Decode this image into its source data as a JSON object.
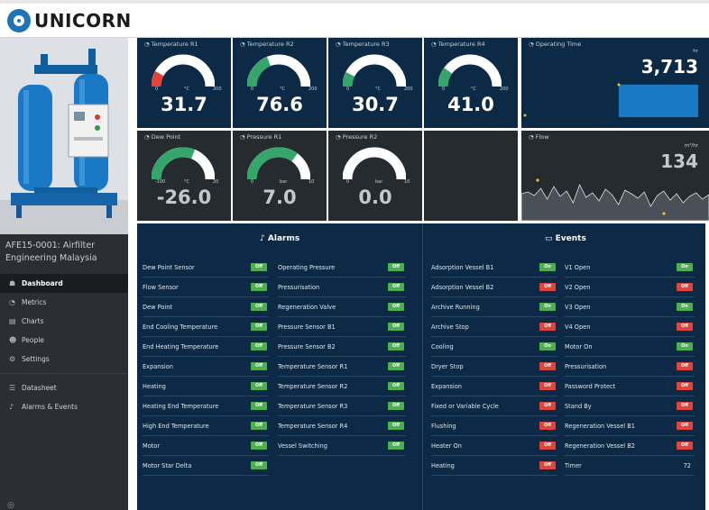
{
  "app": {
    "brand": "UNICORN"
  },
  "sidebar": {
    "machine_caption": "AFE15-0001: Airfilter Engineering Malaysia",
    "nav": [
      {
        "label": "Dashboard",
        "icon": "dashboard-icon",
        "active": true
      },
      {
        "label": "Metrics",
        "icon": "gauge-icon",
        "active": false
      },
      {
        "label": "Charts",
        "icon": "chart-icon",
        "active": false
      },
      {
        "label": "People",
        "icon": "people-icon",
        "active": false
      },
      {
        "label": "Settings",
        "icon": "settings-icon",
        "active": false
      }
    ],
    "nav2": [
      {
        "label": "Datasheet",
        "icon": "datasheet-icon"
      },
      {
        "label": "Alarms & Events",
        "icon": "bell-icon"
      }
    ]
  },
  "top_tiles": [
    {
      "title": "Temperature R1",
      "min": "0",
      "unit": "°C",
      "max": "200",
      "value": "31.7",
      "fill": 0.16,
      "color": "#e0443c",
      "bg": "blue"
    },
    {
      "title": "Temperature R2",
      "min": "0",
      "unit": "°C",
      "max": "200",
      "value": "76.6",
      "fill": 0.38,
      "color": "#36a56b",
      "bg": "blue"
    },
    {
      "title": "Temperature R3",
      "min": "0",
      "unit": "°C",
      "max": "200",
      "value": "30.7",
      "fill": 0.15,
      "color": "#36a56b",
      "bg": "blue"
    },
    {
      "title": "Temperature R4",
      "min": "0",
      "unit": "°C",
      "max": "200",
      "value": "41.0",
      "fill": 0.2,
      "color": "#36a56b",
      "bg": "blue"
    }
  ],
  "operating_time": {
    "title": "Operating Time",
    "unit": "hr",
    "value": "3,713"
  },
  "mid_tiles": [
    {
      "title": "Dew Point",
      "min": "-100",
      "unit": "°C",
      "max": "20",
      "value": "-26.0",
      "fill": 0.62,
      "color": "#36a56b"
    },
    {
      "title": "Pressure R1",
      "min": "0",
      "unit": "bar",
      "max": "10",
      "value": "7.0",
      "fill": 0.7,
      "color": "#36a56b"
    },
    {
      "title": "Pressure R2",
      "min": "0",
      "unit": "bar",
      "max": "10",
      "value": "0.0",
      "fill": 0.0,
      "color": "#36a56b"
    }
  ],
  "flow": {
    "title": "Flow",
    "unit": "m³/hr",
    "value": "134"
  },
  "alarms": {
    "title": "Alarms",
    "left": [
      "Dew Point Sensor",
      "Flow Sensor",
      "Dew Point",
      "End Cooling Temperature",
      "End Heating Temperature",
      "Expansion",
      "Heating",
      "Heating End Temperature",
      "High End Temperature",
      "Motor",
      "Motor Star Delta"
    ],
    "right": [
      "Operating Pressure",
      "Pressurisation",
      "Regeneration Valve",
      "Pressure Sensor B1",
      "Pressure Sensor B2",
      "Temperature Sensor R1",
      "Temperature Sensor R2",
      "Temperature Sensor R3",
      "Temperature Sensor R4",
      "Vessel Switching"
    ],
    "badge": "Off"
  },
  "events": {
    "title": "Events",
    "left": [
      {
        "label": "Adsorption Vessel B1",
        "state": "On"
      },
      {
        "label": "Adsorption Vessel B2",
        "state": "Off"
      },
      {
        "label": "Archive Running",
        "state": "On"
      },
      {
        "label": "Archive Stop",
        "state": "Off"
      },
      {
        "label": "Cooling",
        "state": "On"
      },
      {
        "label": "Dryer Stop",
        "state": "Off"
      },
      {
        "label": "Expansion",
        "state": "Off"
      },
      {
        "label": "Fixed or Variable Cycle",
        "state": "Off"
      },
      {
        "label": "Flushing",
        "state": "Off"
      },
      {
        "label": "Heater On",
        "state": "Off"
      },
      {
        "label": "Heating",
        "state": "Off"
      }
    ],
    "right": [
      {
        "label": "V1 Open",
        "state": "On"
      },
      {
        "label": "V2 Open",
        "state": "Off"
      },
      {
        "label": "V3 Open",
        "state": "On"
      },
      {
        "label": "V4 Open",
        "state": "Off"
      },
      {
        "label": "Motor On",
        "state": "On"
      },
      {
        "label": "Pressurisation",
        "state": "Off"
      },
      {
        "label": "Password Protect",
        "state": "Off"
      },
      {
        "label": "Stand By",
        "state": "Off"
      },
      {
        "label": "Regeneration Vessel B1",
        "state": "Off"
      },
      {
        "label": "Regeneration Vessel B2",
        "state": "Off"
      },
      {
        "label": "Timer",
        "state": "",
        "number": "72"
      }
    ]
  },
  "colors": {
    "tile_blue": "#0c2a45",
    "tile_dark": "#262b30",
    "on": "#4caf50",
    "off": "#e0443c",
    "sidebar": "#2b2f33"
  }
}
